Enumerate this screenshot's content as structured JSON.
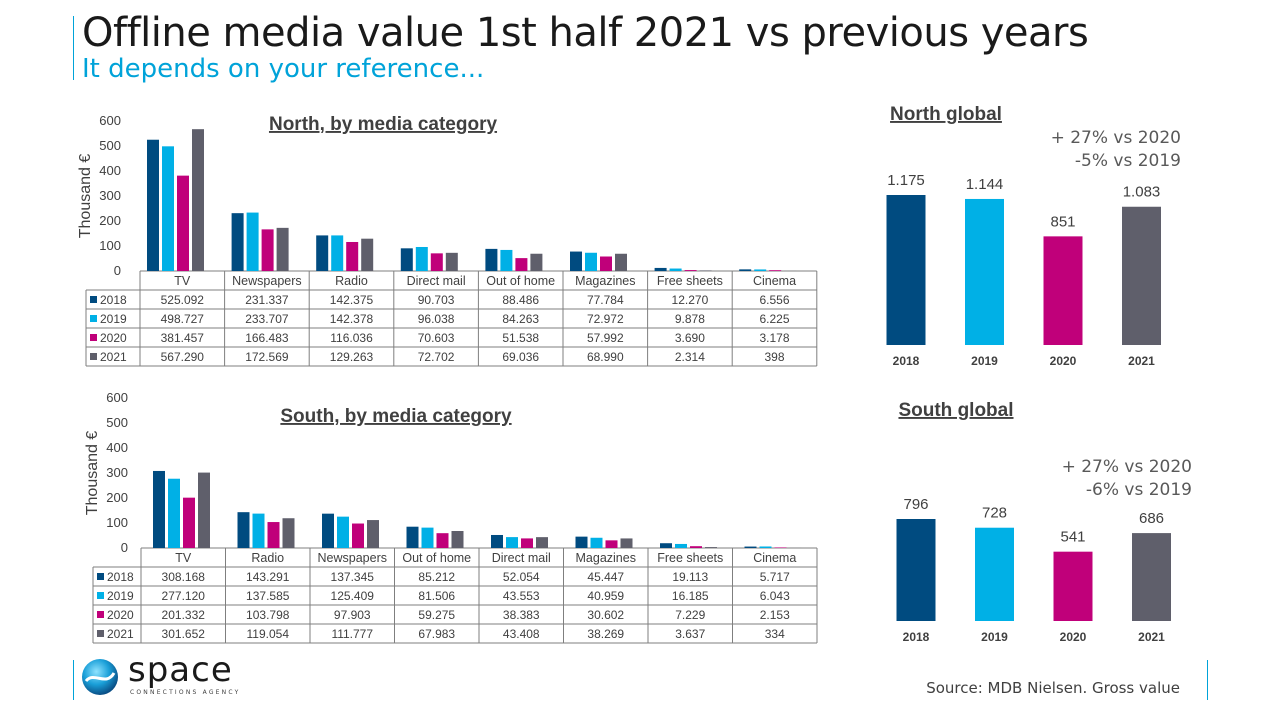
{
  "header": {
    "title": "Offline media value 1st half 2021 vs previous years",
    "subtitle": "It depends on your reference..."
  },
  "footer": {
    "logo_text": "space",
    "logo_tagline": "CONNECTIONS AGENCY",
    "source": "Source: MDB Nielsen. Gross value"
  },
  "colors": {
    "2018": "#004b80",
    "2019": "#00b0e6",
    "2020": "#c0007a",
    "2021": "#5f5f6b",
    "accent": "#00a3d9"
  },
  "chart_data": [
    {
      "id": "north_category",
      "type": "bar",
      "title": "North, by media category",
      "ylabel": "Thousand €",
      "ylim": [
        0,
        600
      ],
      "yticks": [
        0,
        100,
        200,
        300,
        400,
        500,
        600
      ],
      "categories": [
        "TV",
        "Newspapers",
        "Radio",
        "Direct mail",
        "Out of home",
        "Magazines",
        "Free sheets",
        "Cinema"
      ],
      "series": [
        {
          "name": "2018",
          "values": [
            525.092,
            231.337,
            142.375,
            90.703,
            88.486,
            77.784,
            12.27,
            6.556
          ],
          "labels": [
            "525.092",
            "231.337",
            "142.375",
            "90.703",
            "88.486",
            "77.784",
            "12.270",
            "6.556"
          ]
        },
        {
          "name": "2019",
          "values": [
            498.727,
            233.707,
            142.378,
            96.038,
            84.263,
            72.972,
            9.878,
            6.225
          ],
          "labels": [
            "498.727",
            "233.707",
            "142.378",
            "96.038",
            "84.263",
            "72.972",
            "9.878",
            "6.225"
          ]
        },
        {
          "name": "2020",
          "values": [
            381.457,
            166.483,
            116.036,
            70.603,
            51.538,
            57.992,
            3.69,
            3.178
          ],
          "labels": [
            "381.457",
            "166.483",
            "116.036",
            "70.603",
            "51.538",
            "57.992",
            "3.690",
            "3.178"
          ]
        },
        {
          "name": "2021",
          "values": [
            567.29,
            172.569,
            129.263,
            72.702,
            69.036,
            68.99,
            2.314,
            0.398
          ],
          "labels": [
            "567.290",
            "172.569",
            "129.263",
            "72.702",
            "69.036",
            "68.990",
            "2.314",
            "398"
          ]
        }
      ]
    },
    {
      "id": "south_category",
      "type": "bar",
      "title": "South, by media category",
      "ylabel": "Thousand €",
      "ylim": [
        0,
        600
      ],
      "yticks": [
        0,
        100,
        200,
        300,
        400,
        500,
        600
      ],
      "categories": [
        "TV",
        "Radio",
        "Newspapers",
        "Out of home",
        "Direct mail",
        "Magazines",
        "Free sheets",
        "Cinema"
      ],
      "series": [
        {
          "name": "2018",
          "values": [
            308.168,
            143.291,
            137.345,
            85.212,
            52.054,
            45.447,
            19.113,
            5.717
          ],
          "labels": [
            "308.168",
            "143.291",
            "137.345",
            "85.212",
            "52.054",
            "45.447",
            "19.113",
            "5.717"
          ]
        },
        {
          "name": "2019",
          "values": [
            277.12,
            137.585,
            125.409,
            81.506,
            43.553,
            40.959,
            16.185,
            6.043
          ],
          "labels": [
            "277.120",
            "137.585",
            "125.409",
            "81.506",
            "43.553",
            "40.959",
            "16.185",
            "6.043"
          ]
        },
        {
          "name": "2020",
          "values": [
            201.332,
            103.798,
            97.903,
            59.275,
            38.383,
            30.602,
            7.229,
            2.153
          ],
          "labels": [
            "201.332",
            "103.798",
            "97.903",
            "59.275",
            "38.383",
            "30.602",
            "7.229",
            "2.153"
          ]
        },
        {
          "name": "2021",
          "values": [
            301.652,
            119.054,
            111.777,
            67.983,
            43.408,
            38.269,
            3.637,
            0.334
          ],
          "labels": [
            "301.652",
            "119.054",
            "111.777",
            "67.983",
            "43.408",
            "38.269",
            "3.637",
            "334"
          ]
        }
      ]
    },
    {
      "id": "north_global",
      "type": "bar",
      "title": "North global",
      "categories": [
        "2018",
        "2019",
        "2020",
        "2021"
      ],
      "values": [
        1175,
        1144,
        851,
        1083
      ],
      "labels": [
        "1.175",
        "1.144",
        "851",
        "1.083"
      ],
      "annotations": [
        "+ 27% vs 2020",
        "-5% vs 2019"
      ]
    },
    {
      "id": "south_global",
      "type": "bar",
      "title": "South global",
      "categories": [
        "2018",
        "2019",
        "2020",
        "2021"
      ],
      "values": [
        796,
        728,
        541,
        686
      ],
      "labels": [
        "796",
        "728",
        "541",
        "686"
      ],
      "annotations": [
        "+ 27% vs 2020",
        "-6% vs 2019"
      ]
    }
  ]
}
